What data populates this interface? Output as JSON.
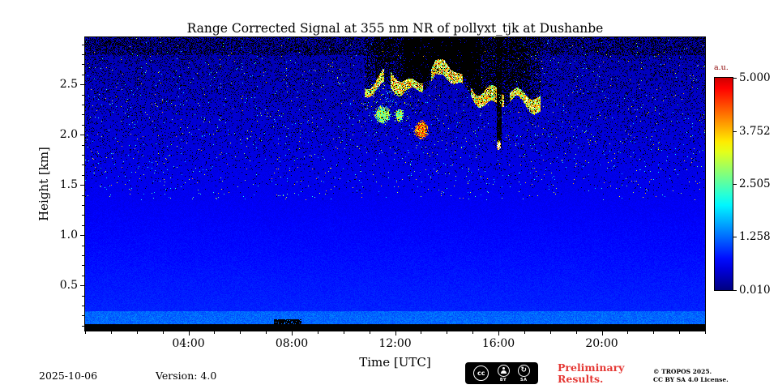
{
  "footer": {
    "date": "2025-10-06",
    "version": "Version: 4.0",
    "preliminary_line1": "Preliminary",
    "preliminary_line2": "Results.",
    "copyright_line1": "© TROPOS 2025.",
    "copyright_line2": "CC BY SA 4.0 License."
  },
  "badge": {
    "cc": "cc",
    "by": "BY",
    "sa": "SA",
    "sa_glyph": "↻"
  },
  "chart_data": {
    "type": "heatmap",
    "title": "Range Corrected Signal at 355 nm NR of pollyxt_tjk at Dushanbe",
    "xlabel": "Time [UTC]",
    "ylabel": "Height [km]",
    "x_range_hours": [
      0,
      24
    ],
    "x_ticks": [
      "04:00",
      "08:00",
      "12:00",
      "16:00",
      "20:00"
    ],
    "x_tick_hours": [
      4,
      8,
      12,
      16,
      20
    ],
    "x_minor_step_h": 1,
    "y_range_km": [
      0.05,
      2.97
    ],
    "y_ticks": [
      0.5,
      1.0,
      1.5,
      2.0,
      2.5
    ],
    "y_minor_step_km": 0.1,
    "grid": false,
    "colormap": "jet",
    "colorbar": {
      "label": "a.u.",
      "min": 0.01,
      "max": 5.0,
      "tick_values": [
        5.0,
        3.752,
        2.505,
        1.258,
        0.01
      ],
      "tick_labels": [
        "5.000",
        "3.752",
        "2.505",
        "1.258",
        "0.010"
      ]
    },
    "features": {
      "background_au_surface": 0.9,
      "background_au_top": 0.25,
      "noise_speckle_above_km": 1.35,
      "surface_layer_top_km": 0.25,
      "blind_zone_top_km": 0.12,
      "cloud_layer": {
        "t_start_h": 10.8,
        "t_end_h": 17.6,
        "base_km_min": 2.0,
        "base_km_max": 2.6,
        "thickness_km": 0.12,
        "peak_value_au": 5.0,
        "attenuated_above": true,
        "dense_attenuation_window_h": [
          12.3,
          15.3
        ]
      },
      "attenuation_streak": {
        "t_start_h": 15.93,
        "t_end_h": 16.12,
        "bottom_km": 1.85
      },
      "bright_blobs": [
        {
          "t_h": 11.5,
          "h_km": 2.2,
          "rt_h": 0.35,
          "rh_km": 0.1,
          "level": "medium"
        },
        {
          "t_h": 12.15,
          "h_km": 2.2,
          "rt_h": 0.18,
          "rh_km": 0.07,
          "level": "medium"
        },
        {
          "t_h": 13.0,
          "h_km": 2.05,
          "rt_h": 0.3,
          "rh_km": 0.1,
          "level": "strong"
        },
        {
          "t_h": 16.0,
          "h_km": 1.9,
          "rt_h": 0.09,
          "rh_km": 0.05,
          "level": "white"
        }
      ],
      "surface_gap": {
        "t_start_h": 7.3,
        "t_end_h": 8.35,
        "top_km": 0.17
      }
    }
  }
}
